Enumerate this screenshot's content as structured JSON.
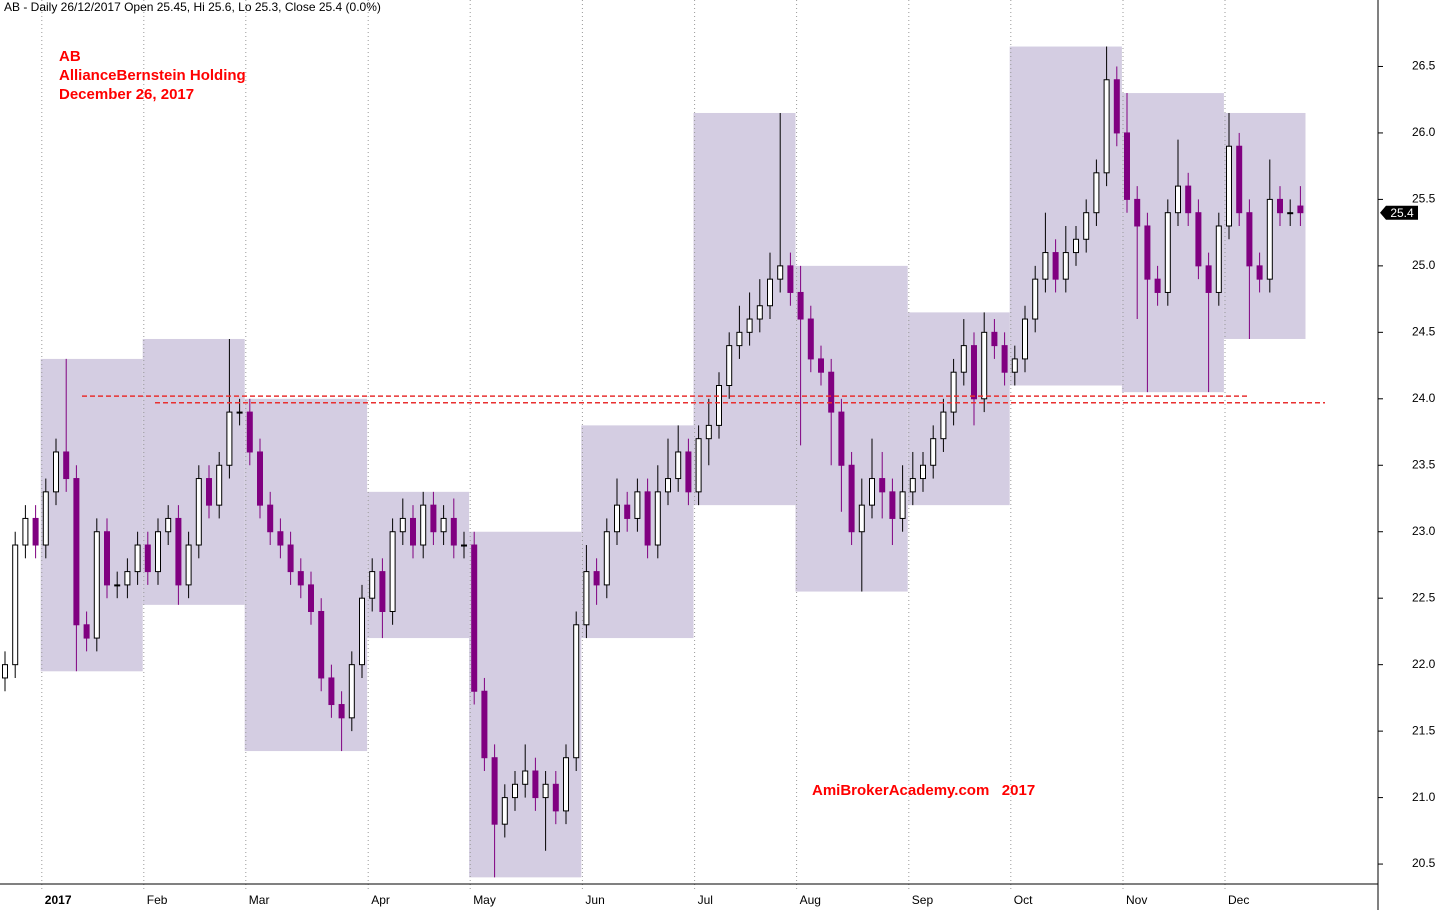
{
  "chart_data": {
    "type": "candlestick",
    "title": "AB - Daily 26/12/2017 Open 25.45, Hi 25.6, Lo 25.3, Close 25.4 (0.0%)",
    "annotations": [
      "AB",
      "AllianceBernstein Holding",
      "December 26, 2017",
      "AmiBrokerAcademy.com   2017"
    ],
    "categories": [
      null,
      null,
      null,
      null,
      "2017",
      null,
      null,
      null,
      null,
      null,
      null,
      null,
      null,
      null,
      "Feb",
      null,
      null,
      null,
      null,
      null,
      null,
      null,
      null,
      null,
      "Mar",
      null,
      null,
      null,
      null,
      null,
      null,
      null,
      null,
      null,
      null,
      null,
      "Apr",
      null,
      null,
      null,
      null,
      null,
      null,
      null,
      null,
      null,
      "May",
      null,
      null,
      null,
      null,
      null,
      null,
      null,
      null,
      null,
      null,
      "Jun",
      null,
      null,
      null,
      null,
      null,
      null,
      null,
      null,
      null,
      null,
      "Jul",
      null,
      null,
      null,
      null,
      null,
      null,
      null,
      null,
      null,
      "Aug",
      null,
      null,
      null,
      null,
      null,
      null,
      null,
      null,
      null,
      null,
      "Sep",
      null,
      null,
      null,
      null,
      null,
      null,
      null,
      null,
      null,
      "Oct",
      null,
      null,
      null,
      null,
      null,
      null,
      null,
      null,
      null,
      null,
      "Nov",
      null,
      null,
      null,
      null,
      null,
      null,
      null,
      null,
      null,
      "Dec",
      null,
      null,
      null,
      null,
      null,
      null,
      null
    ],
    "open": [
      21.9,
      22.0,
      22.9,
      23.1,
      22.9,
      23.3,
      23.6,
      23.4,
      22.3,
      22.2,
      23.0,
      22.6,
      22.6,
      22.7,
      22.9,
      22.7,
      23.0,
      23.1,
      22.6,
      22.9,
      23.4,
      23.2,
      23.5,
      23.9,
      23.9,
      23.6,
      23.2,
      23.0,
      22.9,
      22.7,
      22.6,
      22.4,
      21.9,
      21.7,
      21.6,
      22.0,
      22.5,
      22.7,
      22.4,
      23.0,
      23.1,
      22.9,
      23.2,
      23.0,
      23.1,
      22.9,
      22.9,
      21.8,
      21.3,
      20.8,
      21.0,
      21.1,
      21.2,
      21.0,
      21.1,
      20.9,
      21.3,
      22.3,
      22.7,
      22.6,
      23.0,
      23.2,
      23.1,
      23.3,
      22.9,
      23.3,
      23.4,
      23.6,
      23.3,
      23.7,
      23.8,
      24.1,
      24.4,
      24.5,
      24.6,
      24.7,
      24.9,
      25.0,
      24.8,
      24.6,
      24.3,
      24.2,
      23.9,
      23.5,
      23.0,
      23.2,
      23.4,
      23.3,
      23.1,
      23.3,
      23.4,
      23.5,
      23.7,
      23.9,
      24.2,
      24.4,
      24.0,
      24.5,
      24.4,
      24.2,
      24.3,
      24.6,
      24.9,
      25.1,
      24.9,
      25.1,
      25.2,
      25.4,
      25.7,
      26.4,
      26.0,
      25.5,
      25.3,
      24.9,
      24.8,
      25.4,
      25.6,
      25.4,
      25.0,
      24.8,
      25.3,
      25.9,
      25.4,
      25.0,
      24.9,
      25.5,
      25.4,
      25.45
    ],
    "high": [
      22.1,
      23.0,
      23.2,
      23.2,
      23.4,
      23.7,
      24.3,
      23.5,
      22.4,
      23.1,
      23.1,
      22.7,
      22.8,
      23.0,
      23.0,
      23.1,
      23.2,
      23.2,
      23.0,
      23.5,
      23.5,
      23.6,
      24.45,
      24.0,
      24.0,
      23.7,
      23.3,
      23.1,
      23.0,
      22.8,
      22.7,
      22.5,
      22.0,
      21.8,
      22.1,
      22.6,
      22.8,
      22.8,
      23.1,
      23.25,
      23.2,
      23.3,
      23.3,
      23.2,
      23.25,
      23.0,
      23.0,
      21.9,
      21.4,
      21.1,
      21.2,
      21.4,
      21.3,
      21.2,
      21.2,
      21.4,
      22.4,
      22.9,
      22.8,
      23.1,
      23.4,
      23.3,
      23.4,
      23.4,
      23.5,
      23.7,
      23.8,
      23.7,
      23.8,
      24.0,
      24.2,
      24.5,
      24.7,
      24.8,
      24.9,
      25.1,
      26.15,
      25.1,
      25.0,
      24.7,
      24.4,
      24.3,
      24.0,
      23.6,
      23.4,
      23.7,
      23.6,
      23.4,
      23.5,
      23.6,
      23.6,
      23.8,
      24.0,
      24.3,
      24.6,
      24.5,
      24.65,
      24.6,
      24.5,
      24.4,
      24.7,
      25.0,
      25.4,
      25.2,
      25.3,
      25.3,
      25.5,
      25.8,
      26.65,
      26.5,
      26.3,
      25.6,
      25.4,
      25.0,
      25.5,
      25.95,
      25.7,
      25.5,
      25.1,
      25.4,
      26.15,
      26.0,
      25.5,
      25.1,
      25.8,
      25.6,
      25.5,
      25.6
    ],
    "low": [
      21.8,
      21.9,
      22.8,
      22.8,
      22.8,
      23.2,
      23.3,
      21.95,
      22.1,
      22.1,
      22.5,
      22.5,
      22.5,
      22.6,
      22.6,
      22.6,
      22.9,
      22.45,
      22.5,
      22.8,
      23.1,
      23.1,
      23.4,
      23.8,
      23.5,
      23.1,
      22.9,
      22.8,
      22.6,
      22.5,
      22.3,
      21.8,
      21.6,
      21.35,
      21.5,
      21.9,
      22.4,
      22.2,
      22.3,
      22.9,
      22.8,
      22.8,
      22.9,
      22.9,
      22.8,
      22.8,
      21.7,
      21.2,
      20.4,
      20.7,
      20.9,
      21.0,
      20.9,
      20.6,
      20.8,
      20.8,
      21.2,
      22.2,
      22.45,
      22.5,
      22.9,
      23.0,
      23.0,
      22.8,
      22.8,
      23.2,
      23.3,
      23.2,
      23.2,
      23.5,
      23.7,
      24.0,
      24.3,
      24.4,
      24.5,
      24.6,
      24.8,
      24.7,
      23.65,
      24.2,
      24.1,
      23.5,
      23.15,
      22.9,
      22.55,
      23.1,
      23.1,
      22.9,
      23.0,
      23.2,
      23.3,
      23.4,
      23.6,
      23.8,
      24.1,
      23.8,
      23.9,
      24.3,
      24.1,
      24.1,
      24.2,
      24.5,
      24.8,
      24.8,
      24.8,
      25.0,
      25.1,
      25.3,
      25.6,
      25.9,
      25.4,
      24.6,
      24.05,
      24.7,
      24.7,
      25.3,
      25.3,
      24.9,
      24.05,
      24.7,
      25.2,
      25.3,
      24.45,
      24.8,
      24.8,
      25.3,
      25.3,
      25.3
    ],
    "close": [
      22.0,
      22.9,
      23.1,
      22.9,
      23.3,
      23.6,
      23.4,
      22.3,
      22.2,
      23.0,
      22.6,
      22.6,
      22.7,
      22.9,
      22.7,
      23.0,
      23.1,
      22.6,
      22.9,
      23.4,
      23.2,
      23.5,
      23.9,
      23.9,
      23.6,
      23.2,
      23.0,
      22.9,
      22.7,
      22.6,
      22.4,
      21.9,
      21.7,
      21.6,
      22.0,
      22.5,
      22.7,
      22.4,
      23.0,
      23.1,
      22.9,
      23.2,
      23.0,
      23.1,
      22.9,
      22.9,
      21.8,
      21.3,
      20.8,
      21.0,
      21.1,
      21.2,
      21.0,
      21.1,
      20.9,
      21.3,
      22.3,
      22.7,
      22.6,
      23.0,
      23.2,
      23.1,
      23.3,
      22.9,
      23.3,
      23.4,
      23.6,
      23.3,
      23.7,
      23.8,
      24.1,
      24.4,
      24.5,
      24.6,
      24.7,
      24.9,
      25.0,
      24.8,
      24.6,
      24.3,
      24.2,
      23.9,
      23.5,
      23.0,
      23.2,
      23.4,
      23.3,
      23.1,
      23.3,
      23.4,
      23.5,
      23.7,
      23.9,
      24.2,
      24.4,
      24.0,
      24.5,
      24.4,
      24.2,
      24.3,
      24.6,
      24.9,
      25.1,
      24.9,
      25.1,
      25.2,
      25.4,
      25.7,
      26.4,
      26.0,
      25.5,
      25.3,
      24.9,
      24.8,
      25.4,
      25.6,
      25.4,
      25.0,
      24.8,
      25.3,
      25.9,
      25.4,
      25.0,
      24.9,
      25.5,
      25.4,
      25.4,
      25.4
    ],
    "up_color": "#ffffff",
    "down_color": "#800080",
    "box_color": "#cdc4dd",
    "reference_lines": [
      24.02,
      23.97
    ],
    "reference_color": "#e83030",
    "last_price": 25.4,
    "ylim": [
      20.35,
      27.0
    ],
    "yticks": [
      20.5,
      {
        "value": 21,
        "label": "21.0"
      },
      21.5,
      {
        "value": 22,
        "label": "22.0"
      },
      22.5,
      {
        "value": 23,
        "label": "23.0"
      },
      23.5,
      {
        "value": 24,
        "label": "24.0"
      },
      24.5,
      {
        "value": 25,
        "label": "25.0"
      },
      25.5,
      {
        "value": 26,
        "label": "26.0"
      },
      26.5
    ]
  }
}
